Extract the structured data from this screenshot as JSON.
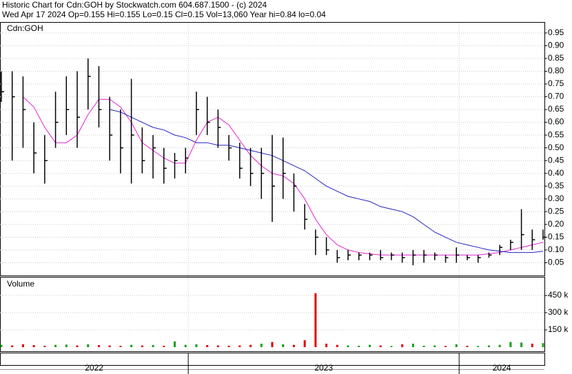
{
  "header": {
    "line1": "Historic Chart for Cdn:GOH by Stockwatch.com 604.687.1500 - (c) 2024",
    "line2": "Wed Apr 17 2024  Op=0.155  Hi=0.155  Lo=0.15  Cl=0.15  Vol=13,060  Year hi=0.84  lo=0.04"
  },
  "chart_data": [
    {
      "type": "ohlc",
      "label": "Cdn:GOH",
      "color": "#000000",
      "x": [
        2022.31,
        2022.35,
        2022.39,
        2022.43,
        2022.47,
        2022.51,
        2022.55,
        2022.59,
        2022.63,
        2022.67,
        2022.71,
        2022.75,
        2022.79,
        2022.83,
        2022.87,
        2022.91,
        2022.95,
        2022.99,
        2023.03,
        2023.07,
        2023.11,
        2023.15,
        2023.19,
        2023.23,
        2023.27,
        2023.31,
        2023.35,
        2023.39,
        2023.43,
        2023.47,
        2023.51,
        2023.55,
        2023.59,
        2023.63,
        2023.67,
        2023.71,
        2023.75,
        2023.79,
        2023.83,
        2023.87,
        2023.91,
        2023.95,
        2023.99,
        2024.03,
        2024.07,
        2024.11,
        2024.15,
        2024.19,
        2024.23,
        2024.27,
        2024.31
      ],
      "high": [
        0.8,
        0.8,
        0.78,
        0.6,
        0.55,
        0.72,
        0.78,
        0.8,
        0.85,
        0.82,
        0.7,
        0.65,
        0.77,
        0.58,
        0.55,
        0.5,
        0.48,
        0.5,
        0.72,
        0.7,
        0.65,
        0.55,
        0.52,
        0.5,
        0.5,
        0.55,
        0.54,
        0.4,
        0.28,
        0.18,
        0.15,
        0.1,
        0.1,
        0.09,
        0.09,
        0.1,
        0.09,
        0.09,
        0.1,
        0.1,
        0.09,
        0.08,
        0.11,
        0.08,
        0.08,
        0.09,
        0.12,
        0.14,
        0.26,
        0.18,
        0.18
      ],
      "low": [
        0.68,
        0.45,
        0.5,
        0.4,
        0.36,
        0.5,
        0.55,
        0.5,
        0.65,
        0.58,
        0.45,
        0.4,
        0.36,
        0.4,
        0.38,
        0.36,
        0.38,
        0.4,
        0.55,
        0.55,
        0.5,
        0.45,
        0.38,
        0.35,
        0.3,
        0.21,
        0.3,
        0.25,
        0.18,
        0.08,
        0.08,
        0.05,
        0.06,
        0.06,
        0.06,
        0.06,
        0.06,
        0.05,
        0.04,
        0.05,
        0.06,
        0.05,
        0.05,
        0.06,
        0.05,
        0.07,
        0.08,
        0.1,
        0.1,
        0.1,
        0.14
      ],
      "close": [
        0.72,
        0.7,
        0.65,
        0.48,
        0.45,
        0.6,
        0.65,
        0.62,
        0.78,
        0.65,
        0.55,
        0.5,
        0.55,
        0.45,
        0.5,
        0.42,
        0.45,
        0.46,
        0.65,
        0.6,
        0.58,
        0.5,
        0.42,
        0.4,
        0.4,
        0.35,
        0.4,
        0.35,
        0.22,
        0.15,
        0.1,
        0.07,
        0.08,
        0.08,
        0.08,
        0.07,
        0.08,
        0.07,
        0.08,
        0.08,
        0.08,
        0.07,
        0.08,
        0.07,
        0.07,
        0.08,
        0.11,
        0.13,
        0.16,
        0.14,
        0.15
      ],
      "series": [
        {
          "color": "#e020d0",
          "values": [
            null,
            null,
            0.7,
            0.66,
            0.58,
            0.52,
            0.52,
            0.55,
            0.63,
            0.69,
            0.69,
            0.66,
            0.6,
            0.52,
            0.49,
            0.46,
            0.44,
            0.44,
            0.53,
            0.6,
            0.62,
            0.59,
            0.53,
            0.47,
            0.43,
            0.4,
            0.39,
            0.36,
            0.3,
            0.22,
            0.16,
            0.12,
            0.1,
            0.09,
            0.085,
            0.08,
            0.08,
            0.08,
            0.08,
            0.08,
            0.08,
            0.08,
            0.08,
            0.08,
            0.08,
            0.085,
            0.09,
            0.1,
            0.11,
            0.12,
            0.13
          ]
        },
        {
          "color": "#2020c0",
          "values": [
            null,
            null,
            null,
            null,
            null,
            null,
            null,
            null,
            null,
            null,
            0.65,
            0.64,
            0.62,
            0.6,
            0.58,
            0.57,
            0.55,
            0.54,
            0.52,
            0.52,
            0.51,
            0.51,
            0.5,
            0.49,
            0.48,
            0.47,
            0.45,
            0.43,
            0.41,
            0.38,
            0.35,
            0.33,
            0.31,
            0.3,
            0.29,
            0.27,
            0.26,
            0.25,
            0.23,
            0.2,
            0.17,
            0.15,
            0.13,
            0.12,
            0.11,
            0.1,
            0.095,
            0.09,
            0.09,
            0.09,
            0.095
          ]
        }
      ],
      "xlim": [
        2022.305,
        2024.315
      ],
      "xticks": [
        2023,
        2024
      ],
      "ylim": [
        0,
        0.99
      ],
      "yticks": [
        0.05,
        {
          "value": 0.1,
          "label": "0.10"
        },
        0.15,
        {
          "value": 0.2,
          "label": "0.20"
        },
        0.25,
        {
          "value": 0.3,
          "label": "0.30"
        },
        0.35,
        {
          "value": 0.4,
          "label": "0.40"
        },
        0.45,
        {
          "value": 0.5,
          "label": "0.50"
        },
        0.55,
        {
          "value": 0.6,
          "label": "0.60"
        },
        0.65,
        {
          "value": 0.7,
          "label": "0.70"
        },
        0.75,
        {
          "value": 0.8,
          "label": "0.80"
        },
        0.85,
        {
          "value": 0.9,
          "label": "0.90"
        },
        0.95
      ],
      "grid": true
    },
    {
      "type": "bar",
      "label": "Volume",
      "up_color": "#10a010",
      "down_color": "#e00000",
      "values": [
        20000,
        15000,
        25000,
        18000,
        12000,
        20000,
        22000,
        15000,
        25000,
        18000,
        15000,
        12000,
        20000,
        15000,
        18000,
        12000,
        50000,
        20000,
        25000,
        18000,
        15000,
        12000,
        15000,
        20000,
        30000,
        45000,
        25000,
        20000,
        60000,
        470000,
        30000,
        20000,
        15000,
        12000,
        20000,
        15000,
        10000,
        25000,
        30000,
        12000,
        15000,
        10000,
        25000,
        12000,
        10000,
        15000,
        20000,
        45000,
        40000,
        30000,
        35000
      ],
      "xlim": [
        2022.305,
        2024.315
      ],
      "xticks": [
        2023,
        2024
      ],
      "year_labels": [
        "2022",
        "2023",
        "2024"
      ],
      "ylim": [
        0,
        606000
      ],
      "yticks": [
        {
          "value": 150000,
          "label": "150 k"
        },
        {
          "value": 300000,
          "label": "300 k"
        },
        {
          "value": 450000,
          "label": "450 k"
        }
      ],
      "grid": true
    }
  ]
}
